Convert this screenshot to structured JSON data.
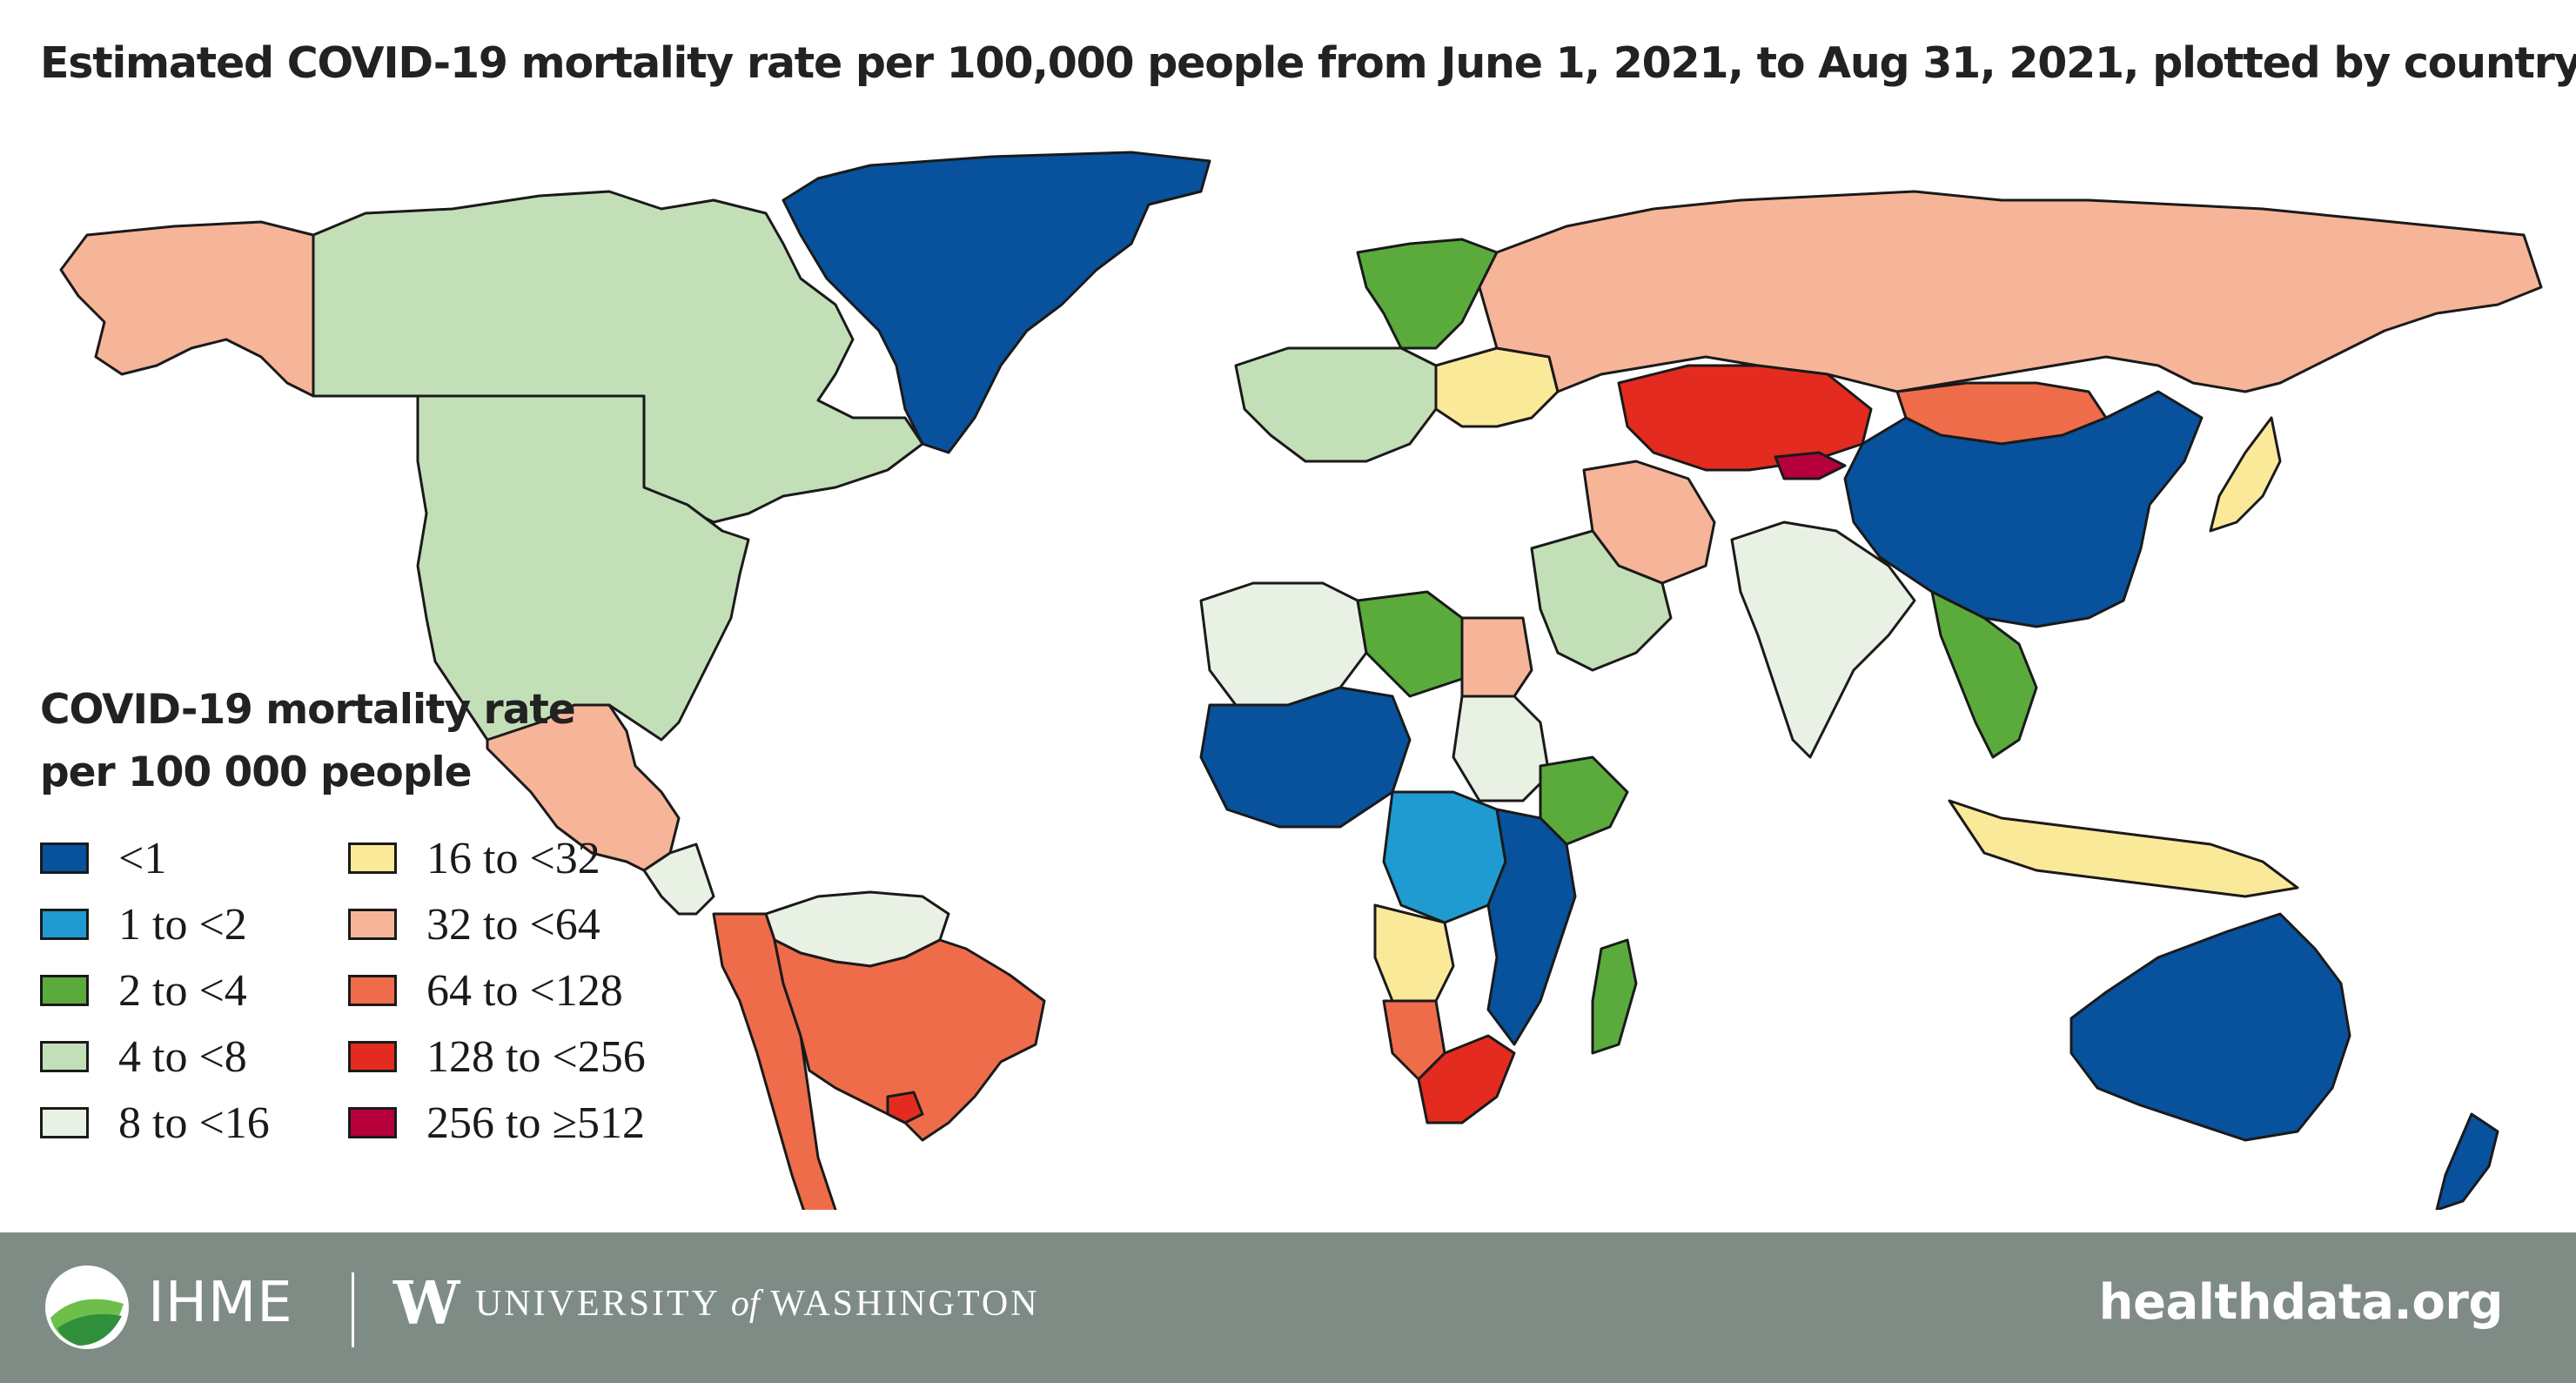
{
  "title": "Estimated COVID-19 mortality rate per 100,000 people from June 1, 2021, to Aug 31, 2021, plotted by country",
  "legend": {
    "title_line1": "COVID-19 mortality rate",
    "title_line2": "per 100 000 people",
    "items": [
      {
        "key": "lt1",
        "label": "<1",
        "color": "#08519c"
      },
      {
        "key": "1to2",
        "label": "1 to <2",
        "color": "#1f9bd1"
      },
      {
        "key": "2to4",
        "label": "2 to <4",
        "color": "#5aab3c"
      },
      {
        "key": "4to8",
        "label": "4 to <8",
        "color": "#c3dfb7"
      },
      {
        "key": "8to16",
        "label": "8 to <16",
        "color": "#e8f1e3"
      },
      {
        "key": "16to32",
        "label": "16 to <32",
        "color": "#fbe99a"
      },
      {
        "key": "32to64",
        "label": "32 to <64",
        "color": "#f6b598"
      },
      {
        "key": "64to128",
        "label": "64 to <128",
        "color": "#ef6c4a"
      },
      {
        "key": "128to256",
        "label": "128 to <256",
        "color": "#e32b20"
      },
      {
        "key": "256to512",
        "label": "256 to ≥512",
        "color": "#b5003b"
      }
    ]
  },
  "map": {
    "regions": [
      {
        "name": "greenland",
        "category": "lt1"
      },
      {
        "name": "canada",
        "category": "4to8"
      },
      {
        "name": "alaska",
        "category": "32to64"
      },
      {
        "name": "united-states",
        "category": "4to8"
      },
      {
        "name": "mexico",
        "category": "32to64"
      },
      {
        "name": "central-america",
        "category": "8to16"
      },
      {
        "name": "brazil",
        "category": "64to128"
      },
      {
        "name": "andean-south-america",
        "category": "64to128"
      },
      {
        "name": "venezuela-guianas",
        "category": "8to16"
      },
      {
        "name": "uruguay",
        "category": "128to256"
      },
      {
        "name": "russia",
        "category": "32to64"
      },
      {
        "name": "kazakhstan",
        "category": "128to256"
      },
      {
        "name": "mongolia",
        "category": "64to128"
      },
      {
        "name": "kyrgyzstan",
        "category": "256to512"
      },
      {
        "name": "china",
        "category": "lt1"
      },
      {
        "name": "iran",
        "category": "32to64"
      },
      {
        "name": "india",
        "category": "8to16"
      },
      {
        "name": "southeast-asia",
        "category": "2to4"
      },
      {
        "name": "indonesia-philippines",
        "category": "16to32"
      },
      {
        "name": "japan",
        "category": "16to32"
      },
      {
        "name": "australia",
        "category": "lt1"
      },
      {
        "name": "new-zealand",
        "category": "lt1"
      },
      {
        "name": "scandinavia",
        "category": "2to4"
      },
      {
        "name": "western-europe",
        "category": "4to8"
      },
      {
        "name": "eastern-europe",
        "category": "16to32"
      },
      {
        "name": "north-africa-west",
        "category": "8to16"
      },
      {
        "name": "libya",
        "category": "2to4"
      },
      {
        "name": "egypt",
        "category": "32to64"
      },
      {
        "name": "west-africa",
        "category": "lt1"
      },
      {
        "name": "sudan",
        "category": "8to16"
      },
      {
        "name": "ethiopia",
        "category": "2to4"
      },
      {
        "name": "central-africa",
        "category": "1to2"
      },
      {
        "name": "east-africa",
        "category": "lt1"
      },
      {
        "name": "angola",
        "category": "16to32"
      },
      {
        "name": "namibia",
        "category": "64to128"
      },
      {
        "name": "south-africa",
        "category": "128to256"
      },
      {
        "name": "madagascar",
        "category": "2to4"
      },
      {
        "name": "arabian-peninsula",
        "category": "4to8"
      }
    ]
  },
  "footer": {
    "org": "IHME",
    "uw_w": "W",
    "uw_pre": "UNIVERSITY ",
    "uw_of": "of",
    "uw_post": " WASHINGTON",
    "site": "healthdata.org",
    "bg_color": "#7f8c86"
  }
}
